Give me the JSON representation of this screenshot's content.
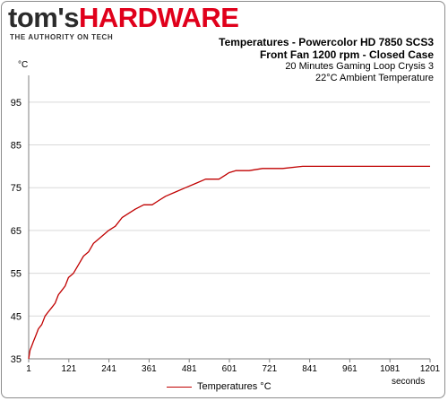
{
  "header": {
    "logo_part1": "tom's",
    "logo_part2": "HARDWARE",
    "tagline": "THE AUTHORITY ON TECH",
    "title_line1": "Temperatures - Powercolor HD 7850 SCS3",
    "title_line2": "Front Fan  1200 rpm - Closed Case",
    "title_line3": "20 Minutes Gaming Loop Crysis 3",
    "title_line4": "22°C Ambient Temperature"
  },
  "colors": {
    "series": "#c00000",
    "brand_red": "#e0001b",
    "grid": "#d9d9d9"
  },
  "chart_data": {
    "type": "line",
    "xlabel": "seconds",
    "ylabel": "°C",
    "xlim": [
      1,
      1201
    ],
    "ylim": [
      35,
      100
    ],
    "x_ticks": [
      1,
      121,
      241,
      361,
      481,
      601,
      721,
      841,
      961,
      1081,
      1201
    ],
    "y_ticks": [
      35,
      45,
      55,
      65,
      75,
      85,
      95
    ],
    "grid": "horizontal",
    "legend": "bottom-center",
    "series": [
      {
        "name": "Temperatures °C",
        "points": [
          [
            1,
            35
          ],
          [
            5,
            37
          ],
          [
            10,
            38
          ],
          [
            15,
            39
          ],
          [
            20,
            40
          ],
          [
            25,
            41
          ],
          [
            30,
            42
          ],
          [
            40,
            43
          ],
          [
            50,
            45
          ],
          [
            60,
            46
          ],
          [
            70,
            47
          ],
          [
            80,
            48
          ],
          [
            90,
            50
          ],
          [
            100,
            51
          ],
          [
            110,
            52
          ],
          [
            120,
            54
          ],
          [
            135,
            55
          ],
          [
            150,
            57
          ],
          [
            165,
            59
          ],
          [
            180,
            60
          ],
          [
            195,
            62
          ],
          [
            210,
            63
          ],
          [
            225,
            64
          ],
          [
            240,
            65
          ],
          [
            260,
            66
          ],
          [
            280,
            68
          ],
          [
            300,
            69
          ],
          [
            320,
            70
          ],
          [
            345,
            71
          ],
          [
            370,
            71
          ],
          [
            390,
            72
          ],
          [
            410,
            73
          ],
          [
            440,
            74
          ],
          [
            470,
            75
          ],
          [
            500,
            76
          ],
          [
            530,
            77
          ],
          [
            570,
            77
          ],
          [
            590,
            78
          ],
          [
            600,
            78.5
          ],
          [
            620,
            79
          ],
          [
            660,
            79
          ],
          [
            700,
            79.5
          ],
          [
            760,
            79.5
          ],
          [
            820,
            80
          ],
          [
            900,
            80
          ],
          [
            960,
            80
          ],
          [
            1000,
            80
          ],
          [
            1100,
            80
          ],
          [
            1150,
            80
          ],
          [
            1201,
            80
          ]
        ]
      }
    ]
  }
}
